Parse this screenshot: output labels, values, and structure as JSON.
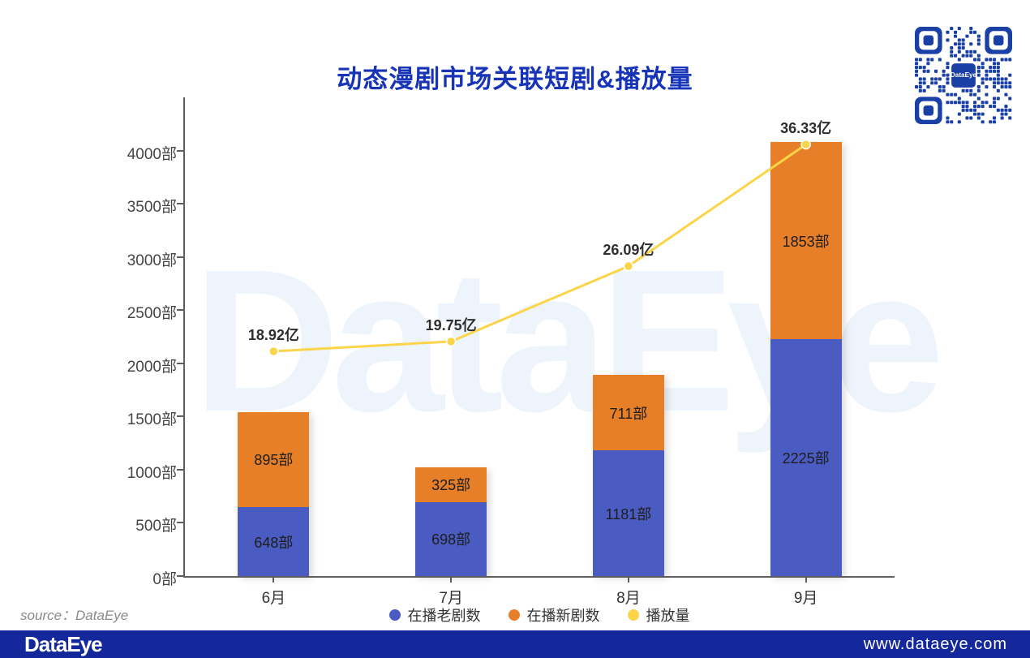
{
  "title": "动态漫剧市场关联短剧&播放量",
  "source_note": "source：DataEye",
  "watermark": "DataEye",
  "footer": {
    "logo": "DataEye",
    "url": "www.dataeye.com"
  },
  "qr": {
    "center_label": "DataEye"
  },
  "colors": {
    "title": "#1733b8",
    "bar_old": "#4a5cc1",
    "bar_new": "#e67f27",
    "line_play": "#fbd44a",
    "footer_bg": "#15289b",
    "qr_blue": "#1a3fa5",
    "watermark": "#eef4fb",
    "axis": "#5f5f5f"
  },
  "chart_data": {
    "type": "bar",
    "subtype": "stacked bars with overlay line on secondary axis",
    "categories": [
      "6月",
      "7月",
      "8月",
      "9月"
    ],
    "series": [
      {
        "name": "在播老剧数",
        "type": "bar",
        "stack": "total",
        "values": [
          648,
          698,
          1181,
          2225
        ],
        "labels": [
          "648部",
          "698部",
          "1181部",
          "2225部"
        ],
        "color": "#4a5cc1"
      },
      {
        "name": "在播新剧数",
        "type": "bar",
        "stack": "total",
        "values": [
          895,
          325,
          711,
          1853
        ],
        "labels": [
          "895部",
          "325部",
          "711部",
          "1853部"
        ],
        "color": "#e67f27"
      },
      {
        "name": "播放量",
        "type": "line",
        "axis": "secondary",
        "values": [
          18.92,
          19.75,
          26.09,
          36.33
        ],
        "labels": [
          "18.92亿",
          "19.75亿",
          "26.09亿",
          "36.33亿"
        ],
        "color": "#fbd44a"
      }
    ],
    "y_axis": {
      "unit": "部",
      "min": 0,
      "max": 4500,
      "tick_values": [
        0,
        500,
        1000,
        1500,
        2000,
        2500,
        3000,
        3500,
        4000
      ],
      "tick_labels": [
        "0部",
        "500部",
        "1000部",
        "1500部",
        "2000部",
        "2500部",
        "3000部",
        "3500部",
        "4000部"
      ]
    },
    "y2_axis": {
      "unit": "亿",
      "min": 0,
      "max": 40.3,
      "visible": false
    },
    "legend": {
      "position": "bottom",
      "entries": [
        "在播老剧数",
        "在播新剧数",
        "播放量"
      ]
    },
    "grid": false
  }
}
